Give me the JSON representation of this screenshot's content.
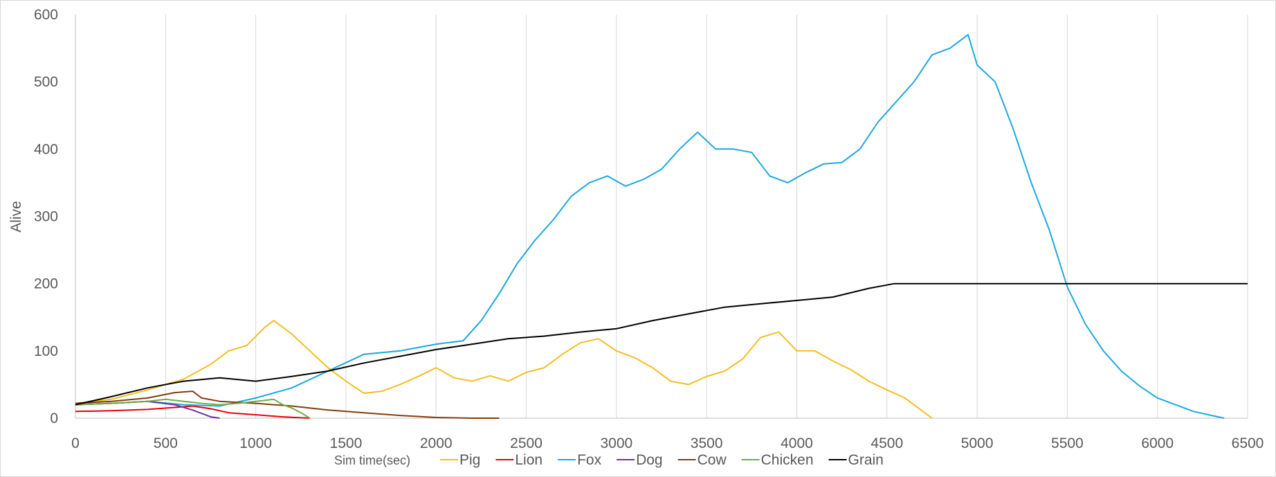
{
  "chart_data": {
    "type": "line",
    "title": "",
    "xlabel": "Sim time(sec)",
    "ylabel": "Alive",
    "xlim": [
      0,
      6500
    ],
    "ylim": [
      0,
      600
    ],
    "x_ticks": [
      0,
      500,
      1000,
      1500,
      2000,
      2500,
      3000,
      3500,
      4000,
      4500,
      5000,
      5500,
      6000,
      6500
    ],
    "y_ticks": [
      0,
      100,
      200,
      300,
      400,
      500,
      600
    ],
    "grid": "vertical",
    "legend_position": "bottom",
    "series": [
      {
        "name": "Pig",
        "color": "#f5bd1f",
        "points": [
          [
            0,
            22
          ],
          [
            200,
            28
          ],
          [
            400,
            42
          ],
          [
            600,
            58
          ],
          [
            750,
            80
          ],
          [
            850,
            100
          ],
          [
            950,
            108
          ],
          [
            1050,
            135
          ],
          [
            1100,
            145
          ],
          [
            1200,
            125
          ],
          [
            1300,
            100
          ],
          [
            1400,
            75
          ],
          [
            1500,
            55
          ],
          [
            1600,
            37
          ],
          [
            1700,
            40
          ],
          [
            1800,
            50
          ],
          [
            1900,
            62
          ],
          [
            2000,
            75
          ],
          [
            2100,
            60
          ],
          [
            2200,
            55
          ],
          [
            2300,
            63
          ],
          [
            2400,
            55
          ],
          [
            2500,
            68
          ],
          [
            2600,
            75
          ],
          [
            2700,
            95
          ],
          [
            2800,
            112
          ],
          [
            2900,
            118
          ],
          [
            3000,
            100
          ],
          [
            3100,
            90
          ],
          [
            3200,
            75
          ],
          [
            3300,
            55
          ],
          [
            3400,
            50
          ],
          [
            3500,
            62
          ],
          [
            3600,
            70
          ],
          [
            3700,
            88
          ],
          [
            3800,
            120
          ],
          [
            3900,
            128
          ],
          [
            4000,
            100
          ],
          [
            4100,
            100
          ],
          [
            4200,
            85
          ],
          [
            4300,
            72
          ],
          [
            4400,
            55
          ],
          [
            4500,
            42
          ],
          [
            4600,
            30
          ],
          [
            4700,
            10
          ],
          [
            4750,
            0
          ]
        ]
      },
      {
        "name": "Lion",
        "color": "#e8000b",
        "points": [
          [
            0,
            10
          ],
          [
            200,
            11
          ],
          [
            400,
            13
          ],
          [
            550,
            16
          ],
          [
            650,
            18
          ],
          [
            750,
            14
          ],
          [
            850,
            8
          ],
          [
            1000,
            5
          ],
          [
            1150,
            2
          ],
          [
            1300,
            0
          ]
        ]
      },
      {
        "name": "Fox",
        "color": "#1ba7e0",
        "points": [
          [
            0,
            20
          ],
          [
            200,
            22
          ],
          [
            400,
            25
          ],
          [
            600,
            20
          ],
          [
            800,
            18
          ],
          [
            1000,
            30
          ],
          [
            1200,
            45
          ],
          [
            1400,
            70
          ],
          [
            1600,
            95
          ],
          [
            1800,
            100
          ],
          [
            1900,
            105
          ],
          [
            2000,
            110
          ],
          [
            2150,
            115
          ],
          [
            2250,
            145
          ],
          [
            2350,
            185
          ],
          [
            2450,
            230
          ],
          [
            2550,
            265
          ],
          [
            2650,
            295
          ],
          [
            2750,
            330
          ],
          [
            2850,
            350
          ],
          [
            2950,
            360
          ],
          [
            3050,
            345
          ],
          [
            3150,
            355
          ],
          [
            3250,
            370
          ],
          [
            3350,
            400
          ],
          [
            3450,
            425
          ],
          [
            3550,
            400
          ],
          [
            3650,
            400
          ],
          [
            3750,
            395
          ],
          [
            3850,
            360
          ],
          [
            3950,
            350
          ],
          [
            4050,
            365
          ],
          [
            4150,
            378
          ],
          [
            4250,
            380
          ],
          [
            4350,
            400
          ],
          [
            4450,
            440
          ],
          [
            4550,
            470
          ],
          [
            4650,
            500
          ],
          [
            4750,
            540
          ],
          [
            4850,
            550
          ],
          [
            4950,
            570
          ],
          [
            5000,
            525
          ],
          [
            5100,
            500
          ],
          [
            5200,
            430
          ],
          [
            5300,
            350
          ],
          [
            5400,
            280
          ],
          [
            5500,
            195
          ],
          [
            5600,
            140
          ],
          [
            5700,
            100
          ],
          [
            5800,
            70
          ],
          [
            5900,
            48
          ],
          [
            6000,
            30
          ],
          [
            6100,
            20
          ],
          [
            6200,
            10
          ],
          [
            6300,
            4
          ],
          [
            6370,
            0
          ]
        ]
      },
      {
        "name": "Dog",
        "color": "#7030a0",
        "points": [
          [
            0,
            20
          ],
          [
            200,
            22
          ],
          [
            400,
            25
          ],
          [
            550,
            20
          ],
          [
            650,
            12
          ],
          [
            750,
            2
          ],
          [
            800,
            0
          ]
        ]
      },
      {
        "name": "Cow",
        "color": "#843c0c",
        "points": [
          [
            0,
            22
          ],
          [
            200,
            25
          ],
          [
            400,
            30
          ],
          [
            550,
            38
          ],
          [
            650,
            40
          ],
          [
            700,
            30
          ],
          [
            800,
            25
          ],
          [
            1000,
            22
          ],
          [
            1200,
            18
          ],
          [
            1400,
            12
          ],
          [
            1600,
            8
          ],
          [
            1800,
            4
          ],
          [
            2000,
            1
          ],
          [
            2200,
            0
          ],
          [
            2350,
            0
          ]
        ]
      },
      {
        "name": "Chicken",
        "color": "#70ad47",
        "points": [
          [
            0,
            20
          ],
          [
            200,
            22
          ],
          [
            400,
            25
          ],
          [
            500,
            28
          ],
          [
            600,
            25
          ],
          [
            700,
            22
          ],
          [
            800,
            20
          ],
          [
            900,
            22
          ],
          [
            1000,
            25
          ],
          [
            1100,
            28
          ],
          [
            1150,
            20
          ],
          [
            1200,
            15
          ],
          [
            1250,
            8
          ],
          [
            1300,
            0
          ]
        ]
      },
      {
        "name": "Grain",
        "color": "#000000",
        "points": [
          [
            0,
            20
          ],
          [
            200,
            32
          ],
          [
            400,
            45
          ],
          [
            600,
            55
          ],
          [
            800,
            60
          ],
          [
            1000,
            55
          ],
          [
            1200,
            62
          ],
          [
            1400,
            70
          ],
          [
            1600,
            82
          ],
          [
            1800,
            92
          ],
          [
            2000,
            102
          ],
          [
            2200,
            110
          ],
          [
            2400,
            118
          ],
          [
            2600,
            122
          ],
          [
            2800,
            128
          ],
          [
            3000,
            133
          ],
          [
            3200,
            145
          ],
          [
            3400,
            155
          ],
          [
            3600,
            165
          ],
          [
            3800,
            170
          ],
          [
            4000,
            175
          ],
          [
            4200,
            180
          ],
          [
            4400,
            193
          ],
          [
            4540,
            200
          ],
          [
            5000,
            200
          ],
          [
            6500,
            200
          ]
        ]
      }
    ]
  }
}
